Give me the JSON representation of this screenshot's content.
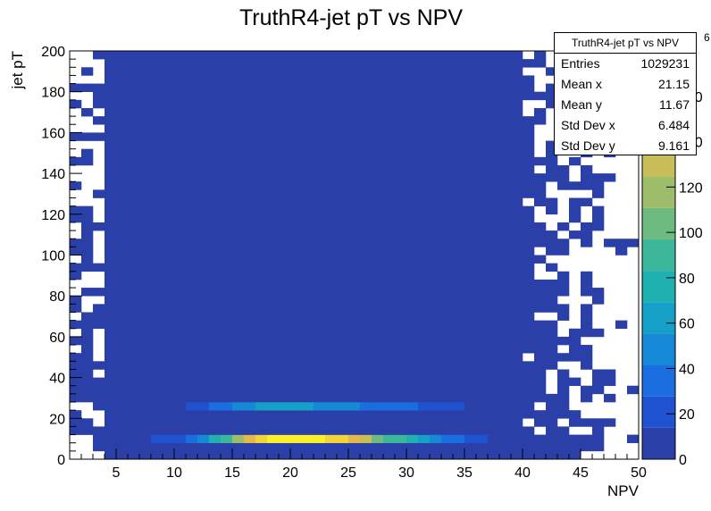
{
  "chart_data": {
    "type": "heatmap",
    "title": "TruthR4-jet pT vs NPV",
    "xlabel": "NPV",
    "ylabel": "jet pT",
    "xlim": [
      1,
      50
    ],
    "ylim": [
      0,
      200
    ],
    "x_ticks": [
      "5",
      "10",
      "15",
      "20",
      "25",
      "30",
      "35",
      "40",
      "45",
      "50"
    ],
    "y_ticks": [
      "0",
      "20",
      "40",
      "60",
      "80",
      "100",
      "120",
      "140",
      "160",
      "180",
      "200"
    ],
    "z_ticks": [
      "0",
      "20",
      "40",
      "60",
      "80",
      "100",
      "120",
      "140",
      "160"
    ],
    "z_exponent": "6",
    "z_range": [
      0,
      180
    ],
    "bins": {
      "nx": 49,
      "ny": 50
    },
    "hot_cells": [
      {
        "x": 2,
        "y": 4,
        "z": 8
      },
      {
        "x": 2,
        "y": 0,
        "z": 0
      },
      {
        "x": 6,
        "y": 2,
        "z": 10
      },
      {
        "x": 7,
        "y": 2,
        "z": 15
      },
      {
        "x": 8,
        "y": 2,
        "z": 20
      },
      {
        "x": 9,
        "y": 2,
        "z": 25
      },
      {
        "x": 10,
        "y": 2,
        "z": 35
      },
      {
        "x": 11,
        "y": 2,
        "z": 50
      },
      {
        "x": 12,
        "y": 2,
        "z": 70
      },
      {
        "x": 13,
        "y": 2,
        "z": 95
      },
      {
        "x": 14,
        "y": 2,
        "z": 120
      },
      {
        "x": 15,
        "y": 2,
        "z": 150
      },
      {
        "x": 16,
        "y": 2,
        "z": 165
      },
      {
        "x": 17,
        "y": 2,
        "z": 172
      },
      {
        "x": 18,
        "y": 2,
        "z": 178
      },
      {
        "x": 19,
        "y": 2,
        "z": 178
      },
      {
        "x": 20,
        "y": 2,
        "z": 175
      },
      {
        "x": 21,
        "y": 2,
        "z": 172
      },
      {
        "x": 22,
        "y": 2,
        "z": 165
      },
      {
        "x": 23,
        "y": 2,
        "z": 155
      },
      {
        "x": 24,
        "y": 2,
        "z": 145
      },
      {
        "x": 25,
        "y": 2,
        "z": 130
      },
      {
        "x": 26,
        "y": 2,
        "z": 105
      },
      {
        "x": 27,
        "y": 2,
        "z": 95
      },
      {
        "x": 28,
        "y": 2,
        "z": 85
      },
      {
        "x": 29,
        "y": 2,
        "z": 75
      },
      {
        "x": 30,
        "y": 2,
        "z": 62
      },
      {
        "x": 31,
        "y": 2,
        "z": 50
      },
      {
        "x": 32,
        "y": 2,
        "z": 40
      },
      {
        "x": 33,
        "y": 2,
        "z": 32
      },
      {
        "x": 34,
        "y": 2,
        "z": 25
      },
      {
        "x": 35,
        "y": 2,
        "z": 18
      },
      {
        "x": 36,
        "y": 2,
        "z": 12
      },
      {
        "x": 10,
        "y": 6,
        "z": 18
      },
      {
        "x": 11,
        "y": 6,
        "z": 22
      },
      {
        "x": 12,
        "y": 6,
        "z": 30
      },
      {
        "x": 13,
        "y": 6,
        "z": 40
      },
      {
        "x": 14,
        "y": 6,
        "z": 48
      },
      {
        "x": 15,
        "y": 6,
        "z": 55
      },
      {
        "x": 16,
        "y": 6,
        "z": 60
      },
      {
        "x": 17,
        "y": 6,
        "z": 62
      },
      {
        "x": 18,
        "y": 6,
        "z": 62
      },
      {
        "x": 19,
        "y": 6,
        "z": 60
      },
      {
        "x": 20,
        "y": 6,
        "z": 58
      },
      {
        "x": 21,
        "y": 6,
        "z": 55
      },
      {
        "x": 22,
        "y": 6,
        "z": 52
      },
      {
        "x": 23,
        "y": 6,
        "z": 48
      },
      {
        "x": 24,
        "y": 6,
        "z": 44
      },
      {
        "x": 25,
        "y": 6,
        "z": 40
      },
      {
        "x": 26,
        "y": 6,
        "z": 38
      },
      {
        "x": 27,
        "y": 6,
        "z": 35
      },
      {
        "x": 28,
        "y": 6,
        "z": 32
      },
      {
        "x": 29,
        "y": 6,
        "z": 28
      },
      {
        "x": 30,
        "y": 6,
        "z": 25
      },
      {
        "x": 31,
        "y": 6,
        "z": 22
      },
      {
        "x": 32,
        "y": 6,
        "z": 18
      },
      {
        "x": 33,
        "y": 6,
        "z": 14
      },
      {
        "x": 34,
        "y": 6,
        "z": 11
      }
    ]
  },
  "stats": {
    "title": "TruthR4-jet pT vs NPV",
    "rows": [
      {
        "label": "Entries",
        "value": "1029231"
      },
      {
        "label": "Mean x",
        "value": "21.15"
      },
      {
        "label": "Mean y",
        "value": "11.67"
      },
      {
        "label": "Std Dev x",
        "value": "6.484"
      },
      {
        "label": "Std Dev y",
        "value": "9.161"
      }
    ]
  },
  "palette": [
    "#2a3fa8",
    "#1f52d0",
    "#1a6ee0",
    "#1689d6",
    "#14a0c7",
    "#1fb0b0",
    "#3db79a",
    "#6dbb7f",
    "#9ebd6a",
    "#c9bd58",
    "#e6b74b",
    "#f2d434",
    "#f9f02a"
  ]
}
